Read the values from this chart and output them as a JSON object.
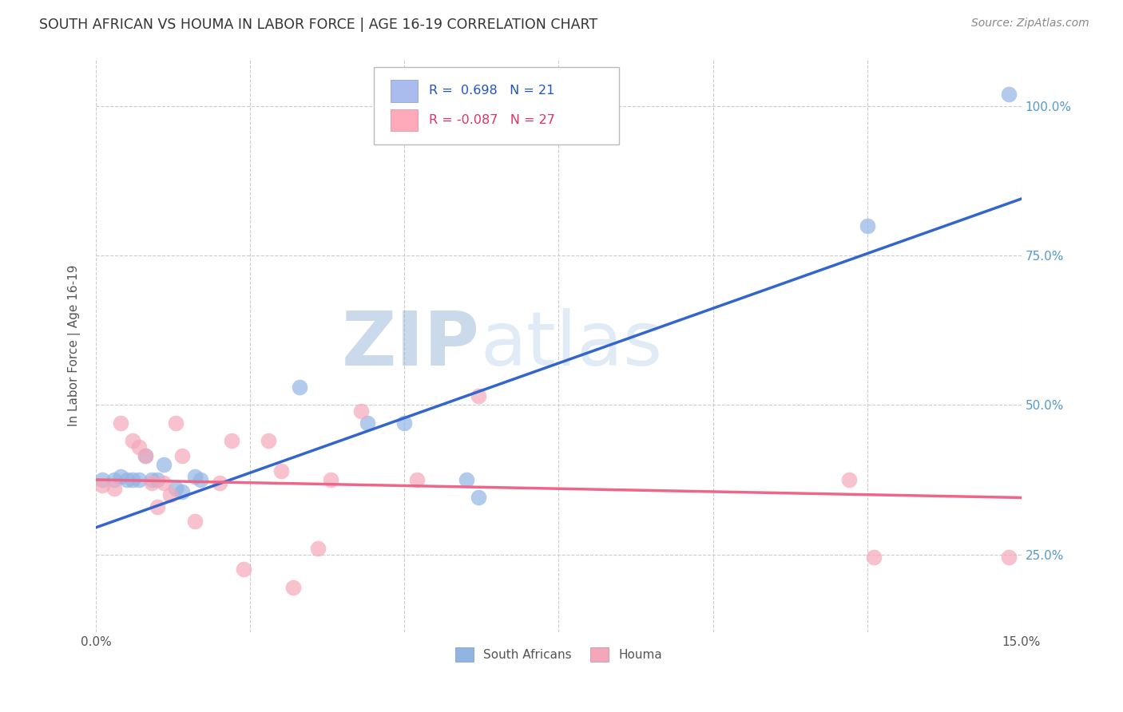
{
  "title": "SOUTH AFRICAN VS HOUMA IN LABOR FORCE | AGE 16-19 CORRELATION CHART",
  "source": "Source: ZipAtlas.com",
  "xlim": [
    0.0,
    0.15
  ],
  "ylim": [
    0.12,
    1.08
  ],
  "ylabel": "In Labor Force | Age 16-19",
  "legend_label1": "South Africans",
  "legend_label2": "Houma",
  "r1": "0.698",
  "n1": "21",
  "r2": "-0.087",
  "n2": "27",
  "blue_color": "#92B4E3",
  "pink_color": "#F4A7B9",
  "line_blue": "#3366CC",
  "line_pink": "#EE6688",
  "watermark_zip": "ZIP",
  "watermark_atlas": "atlas",
  "blue_line_x0": 0.0,
  "blue_line_y0": 0.295,
  "blue_line_x1": 0.15,
  "blue_line_y1": 0.845,
  "pink_line_x0": 0.0,
  "pink_line_y0": 0.375,
  "pink_line_x1": 0.15,
  "pink_line_y1": 0.345,
  "blue_points_x": [
    0.001,
    0.003,
    0.004,
    0.005,
    0.006,
    0.007,
    0.008,
    0.009,
    0.01,
    0.011,
    0.013,
    0.014,
    0.016,
    0.017,
    0.033,
    0.044,
    0.05,
    0.06,
    0.062,
    0.125,
    0.148
  ],
  "blue_points_y": [
    0.375,
    0.375,
    0.38,
    0.375,
    0.375,
    0.375,
    0.415,
    0.375,
    0.375,
    0.4,
    0.36,
    0.355,
    0.38,
    0.375,
    0.53,
    0.47,
    0.47,
    0.375,
    0.345,
    0.8,
    1.02
  ],
  "pink_points_x": [
    0.001,
    0.003,
    0.004,
    0.006,
    0.007,
    0.008,
    0.009,
    0.01,
    0.011,
    0.012,
    0.013,
    0.014,
    0.016,
    0.02,
    0.022,
    0.024,
    0.028,
    0.03,
    0.032,
    0.036,
    0.038,
    0.043,
    0.052,
    0.062,
    0.122,
    0.126,
    0.148
  ],
  "pink_points_y": [
    0.365,
    0.36,
    0.47,
    0.44,
    0.43,
    0.415,
    0.37,
    0.33,
    0.37,
    0.35,
    0.47,
    0.415,
    0.305,
    0.37,
    0.44,
    0.225,
    0.44,
    0.39,
    0.195,
    0.26,
    0.375,
    0.49,
    0.375,
    0.515,
    0.375,
    0.245,
    0.245
  ]
}
